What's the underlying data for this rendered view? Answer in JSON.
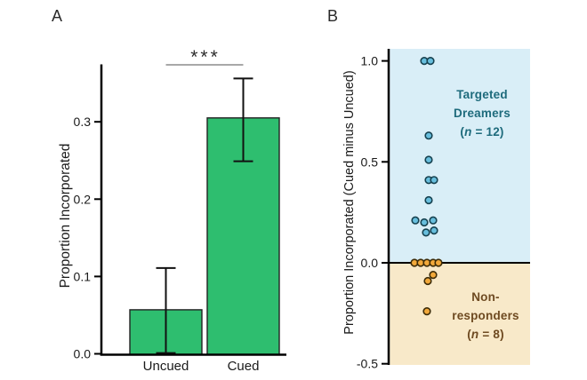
{
  "figure": {
    "panels": [
      {
        "label": "A"
      },
      {
        "label": "B"
      }
    ]
  },
  "chart_data": [
    {
      "panel": "A",
      "type": "bar",
      "title": "",
      "xlabel": "",
      "ylabel": "Proportion Incorporated",
      "categories": [
        "Uncued",
        "Cued"
      ],
      "values": [
        0.057,
        0.305
      ],
      "error_low": [
        0.001,
        0.249
      ],
      "error_high": [
        0.111,
        0.356
      ],
      "significance_label": "***",
      "significance_between": [
        "Uncued",
        "Cued"
      ],
      "yticks": [
        0.0,
        0.1,
        0.2,
        0.3
      ],
      "ytick_labels": [
        "0.0",
        "0.1",
        "0.2",
        "0.3"
      ],
      "ylim": [
        0,
        0.373
      ],
      "grid": false,
      "legend": "none",
      "bar_color": "#2ebe6f",
      "bar_edge_color": "#222222",
      "error_color": "#111111",
      "sig_line_color": "#8c8c8c",
      "sig_star_color": "#2b2b2b"
    },
    {
      "panel": "B",
      "type": "scatter",
      "title": "",
      "xlabel": "",
      "ylabel": "Proportion Incorporated (Cued minus Uncued)",
      "yticks": [
        1.0,
        0.5,
        0.0,
        -0.5
      ],
      "ytick_labels": [
        "1.0",
        "0.5",
        "0.0",
        "-0.5"
      ],
      "ylim": [
        -0.5,
        1.06
      ],
      "grid": false,
      "legend": "none",
      "zero_line": 0.0,
      "series": [
        {
          "name": "Targeted Dreamers",
          "n": 12,
          "dot_fill": "#67bedd",
          "dot_edge": "#16414f",
          "region_bg": "#d9eef7",
          "label_color": "#1e6b7c",
          "label_lines": [
            "Targeted",
            "Dreamers"
          ],
          "n_prefix": "(",
          "n_var": "n",
          "n_rest": " = 12)",
          "points": [
            {
              "value": 1.0,
              "dx": -4
            },
            {
              "value": 1.0,
              "dx": 3
            },
            {
              "value": 0.63,
              "dx": 1
            },
            {
              "value": 0.51,
              "dx": 1
            },
            {
              "value": 0.41,
              "dx": 1
            },
            {
              "value": 0.41,
              "dx": 7
            },
            {
              "value": 0.31,
              "dx": 1
            },
            {
              "value": 0.21,
              "dx": -14
            },
            {
              "value": 0.2,
              "dx": -4
            },
            {
              "value": 0.21,
              "dx": 6
            },
            {
              "value": 0.15,
              "dx": -2
            },
            {
              "value": 0.16,
              "dx": 7
            }
          ]
        },
        {
          "name": "Non-responders",
          "n": 8,
          "dot_fill": "#f2a93b",
          "dot_edge": "#3d2c08",
          "region_bg": "#f8e9c9",
          "label_color": "#6e4a21",
          "label_lines": [
            "Non-",
            "responders"
          ],
          "n_prefix": "(",
          "n_var": "n",
          "n_rest": " = 8)",
          "points": [
            {
              "value": 0.0,
              "dx": -15
            },
            {
              "value": 0.0,
              "dx": -8
            },
            {
              "value": 0.0,
              "dx": -1
            },
            {
              "value": 0.0,
              "dx": 6
            },
            {
              "value": 0.0,
              "dx": 12
            },
            {
              "value": -0.06,
              "dx": 6
            },
            {
              "value": -0.09,
              "dx": 0
            },
            {
              "value": -0.24,
              "dx": -1
            }
          ]
        }
      ]
    }
  ]
}
